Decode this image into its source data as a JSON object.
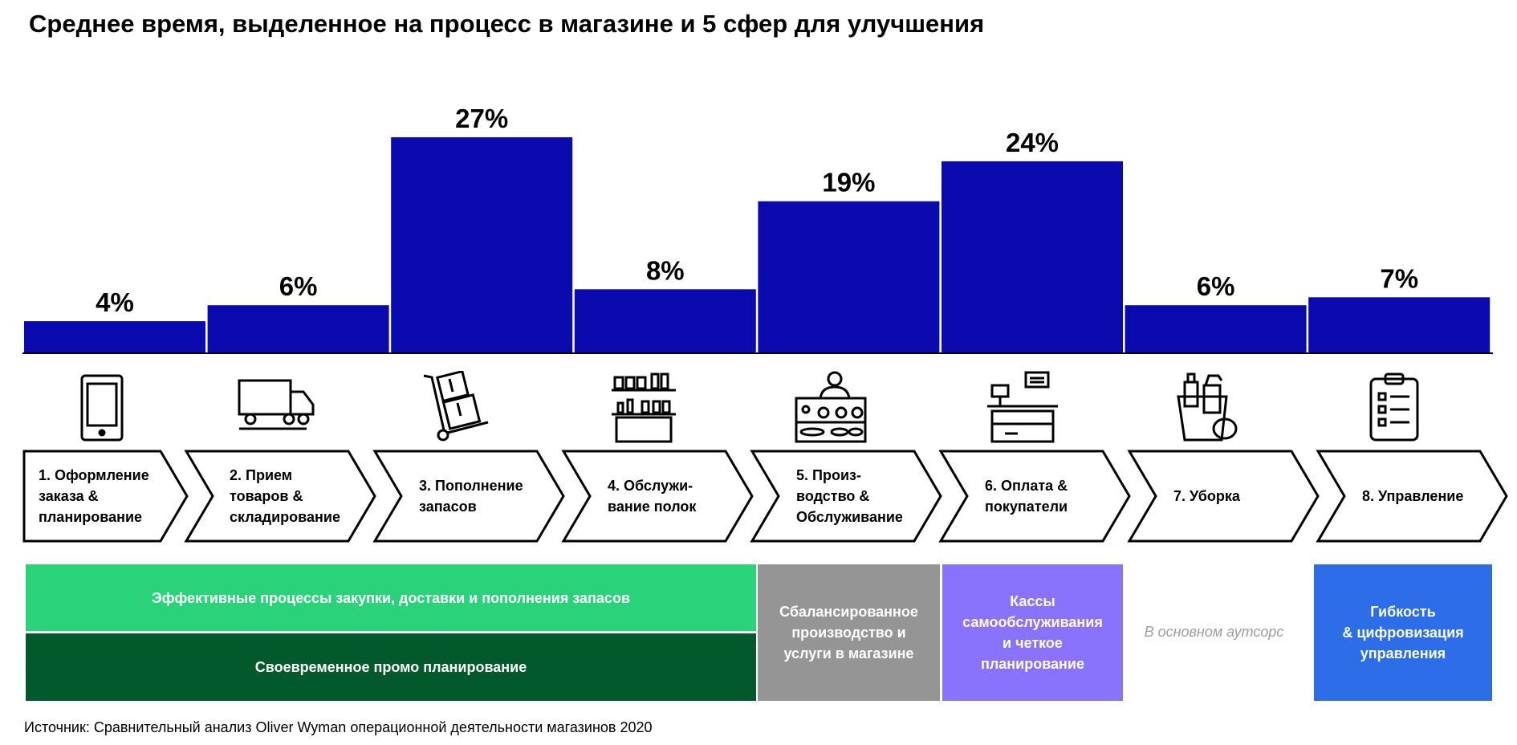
{
  "title": "Среднее время, выделенное на процесс в магазине и 5 сфер для улучшения",
  "chart_data": {
    "type": "bar",
    "categories": [
      "1. Оформление заказа & планирование",
      "2. Прием товаров & складирование",
      "3. Пополнение запасов",
      "4. Обслуживание полок",
      "5. Производство & Обслуживание",
      "6. Оплата & покупатели",
      "7. Уборка",
      "8. Управление"
    ],
    "values": [
      4,
      6,
      27,
      8,
      19,
      24,
      6,
      7
    ],
    "value_labels": [
      "4%",
      "6%",
      "27%",
      "8%",
      "19%",
      "24%",
      "6%",
      "7%"
    ],
    "unit": "%",
    "ylim": [
      0,
      27
    ],
    "bar_color": "#0a0aae",
    "grid": false
  },
  "steps": [
    {
      "line1": "1. Оформление",
      "line2": "заказа &",
      "line3": "планирование",
      "icon": "tablet-icon"
    },
    {
      "line1": "2. Прием",
      "line2": "товаров &",
      "line3": "складирование",
      "icon": "truck-icon"
    },
    {
      "line1": "3. Пополнение",
      "line2": "запасов",
      "line3": "",
      "icon": "hand-truck-icon"
    },
    {
      "line1": "4. Обслужи-",
      "line2": "вание полок",
      "line3": "",
      "icon": "shelf-icon"
    },
    {
      "line1": "5. Произ-",
      "line2": "водство &",
      "line3": "Обслуживание",
      "icon": "bakery-counter-icon"
    },
    {
      "line1": "6. Оплата &",
      "line2": "покупатели",
      "line3": "",
      "icon": "cash-register-icon"
    },
    {
      "line1": "7. Уборка",
      "line2": "",
      "line3": "",
      "icon": "cleaning-bucket-icon"
    },
    {
      "line1": "8. Управление",
      "line2": "",
      "line3": "",
      "icon": "clipboard-icon"
    }
  ],
  "areas": {
    "procurement": {
      "text": "Эффективные процессы закупки, доставки и пополнения запасов",
      "color": "#2ad27a"
    },
    "promo": {
      "text": "Своевременное промо планирование",
      "color": "#02592c"
    },
    "production": {
      "line1": "Сбалансированное",
      "line2": "производство и",
      "line3": "услуги в магазине",
      "color": "#959595"
    },
    "checkout": {
      "line1": "Кассы",
      "line2": "самообслуживания",
      "line3": "и четкое",
      "line4": "планирование",
      "color": "#8a73fc"
    },
    "outsource": "В основном аутсорс",
    "management": {
      "line1": "Гибкость",
      "line2": "& цифровизация",
      "line3": "управления",
      "color": "#2d6ee8"
    }
  },
  "source": "Источник: Сравнительный анализ Oliver Wyman операционной деятельности магазинов 2020"
}
